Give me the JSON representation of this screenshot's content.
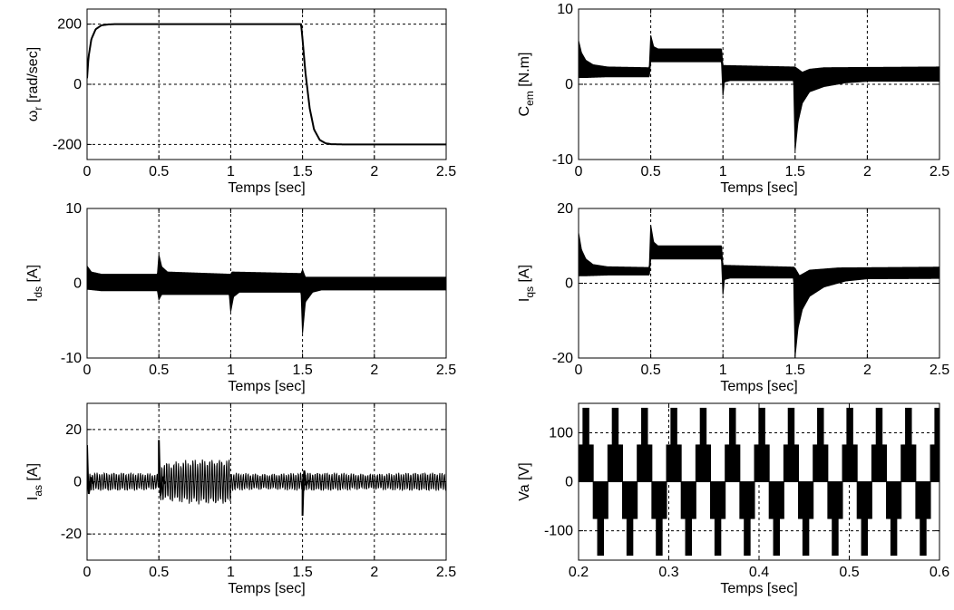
{
  "chart_data": [
    {
      "type": "line",
      "ylabel": "ω_r [rad/sec]",
      "ylabel_main": "ω",
      "ylabel_sub": "r",
      "ylabel_rest": " [rad/sec]",
      "xlabel": "Temps [sec]",
      "xlim": [
        0,
        2.5
      ],
      "ylim": [
        -250,
        250
      ],
      "xticks": [
        0,
        0.5,
        1,
        1.5,
        2,
        2.5
      ],
      "xticklabels": [
        "0",
        "0.5",
        "1",
        "1.5",
        "2",
        "2.5"
      ],
      "yticks": [
        -200,
        0,
        200
      ],
      "yticklabels": [
        "-200",
        "0",
        "200"
      ],
      "grid": true,
      "series": [
        {
          "x": [
            0,
            0.01,
            0.03,
            0.06,
            0.1,
            0.15,
            0.2,
            0.5,
            1.0,
            1.49,
            1.5,
            1.52,
            1.55,
            1.58,
            1.62,
            1.66,
            1.7,
            1.8,
            2.0,
            2.5
          ],
          "values": [
            20,
            90,
            150,
            183,
            196,
            199,
            200,
            200,
            200,
            200,
            150,
            40,
            -80,
            -150,
            -185,
            -196,
            -199,
            -200,
            -200,
            -200
          ]
        }
      ]
    },
    {
      "type": "line",
      "ylabel": "C_em [N.m]",
      "ylabel_main": "C",
      "ylabel_sub": "em",
      "ylabel_rest": " [N.m]",
      "xlabel": "Temps [sec]",
      "xlim": [
        0,
        2.5
      ],
      "ylim": [
        -10,
        10
      ],
      "xticks": [
        0,
        0.5,
        1,
        1.5,
        2,
        2.5
      ],
      "xticklabels": [
        "0",
        "0.5",
        "1",
        "1.5",
        "2",
        "2.5"
      ],
      "yticks": [
        -10,
        0,
        10
      ],
      "yticklabels": [
        "-10",
        "0",
        "10"
      ],
      "grid": true,
      "envelope": {
        "upper": [
          [
            0,
            5.8
          ],
          [
            0.02,
            4.2
          ],
          [
            0.05,
            3.2
          ],
          [
            0.1,
            2.6
          ],
          [
            0.2,
            2.3
          ],
          [
            0.49,
            2.2
          ],
          [
            0.5,
            6.5
          ],
          [
            0.52,
            5.0
          ],
          [
            0.55,
            4.7
          ],
          [
            0.99,
            4.7
          ],
          [
            1.0,
            2.5
          ],
          [
            1.49,
            2.3
          ],
          [
            1.5,
            2.3
          ],
          [
            1.55,
            1.6
          ],
          [
            1.6,
            2.0
          ],
          [
            1.7,
            2.2
          ],
          [
            2.5,
            2.3
          ]
        ],
        "lower": [
          [
            0,
            0.9
          ],
          [
            0.05,
            0.9
          ],
          [
            0.2,
            1.0
          ],
          [
            0.49,
            1.0
          ],
          [
            0.5,
            3.0
          ],
          [
            0.99,
            3.0
          ],
          [
            1.0,
            -1.5
          ],
          [
            1.01,
            0.3
          ],
          [
            1.05,
            0.5
          ],
          [
            1.49,
            0.5
          ],
          [
            1.5,
            -8.8
          ],
          [
            1.52,
            -5.0
          ],
          [
            1.55,
            -2.5
          ],
          [
            1.6,
            -1.0
          ],
          [
            1.7,
            -0.3
          ],
          [
            1.85,
            0.2
          ],
          [
            2.0,
            0.4
          ],
          [
            2.5,
            0.4
          ]
        ]
      }
    },
    {
      "type": "line",
      "ylabel": "I_ds [A]",
      "ylabel_main": "I",
      "ylabel_sub": "ds",
      "ylabel_rest": " [A]",
      "xlabel": "Temps [sec]",
      "xlim": [
        0,
        2.5
      ],
      "ylim": [
        -10,
        10
      ],
      "xticks": [
        0,
        0.5,
        1,
        1.5,
        2,
        2.5
      ],
      "xticklabels": [
        "0",
        "0.5",
        "1",
        "1.5",
        "2",
        "2.5"
      ],
      "yticks": [
        -10,
        0,
        10
      ],
      "yticklabels": [
        "-10",
        "0",
        "10"
      ],
      "grid": true,
      "envelope": {
        "upper": [
          [
            0,
            2.3
          ],
          [
            0.03,
            1.5
          ],
          [
            0.1,
            1.2
          ],
          [
            0.49,
            1.2
          ],
          [
            0.5,
            3.8
          ],
          [
            0.52,
            2.2
          ],
          [
            0.56,
            1.5
          ],
          [
            1.0,
            1.2
          ],
          [
            1.01,
            1.5
          ],
          [
            1.49,
            1.3
          ],
          [
            1.5,
            1.8
          ],
          [
            1.52,
            0.8
          ],
          [
            2.5,
            0.8
          ]
        ],
        "lower": [
          [
            0,
            -0.8
          ],
          [
            0.1,
            -1.0
          ],
          [
            0.49,
            -1.0
          ],
          [
            0.5,
            -2.2
          ],
          [
            0.52,
            -1.5
          ],
          [
            0.99,
            -1.5
          ],
          [
            1.0,
            -3.8
          ],
          [
            1.02,
            -1.8
          ],
          [
            1.06,
            -1.2
          ],
          [
            1.49,
            -1.2
          ],
          [
            1.5,
            -6.7
          ],
          [
            1.52,
            -2.5
          ],
          [
            1.57,
            -1.2
          ],
          [
            1.63,
            -0.9
          ],
          [
            2.5,
            -0.9
          ]
        ]
      }
    },
    {
      "type": "line",
      "ylabel": "I_qs [A]",
      "ylabel_main": "I",
      "ylabel_sub": "qs",
      "ylabel_rest": " [A]",
      "xlabel": "Temps [sec]",
      "xlim": [
        0,
        2.5
      ],
      "ylim": [
        -20,
        20
      ],
      "xticks": [
        0,
        0.5,
        1,
        1.5,
        2,
        2.5
      ],
      "xticklabels": [
        "0",
        "0.5",
        "1",
        "1.5",
        "2",
        "2.5"
      ],
      "yticks": [
        -20,
        0,
        20
      ],
      "yticklabels": [
        "-20",
        "0",
        "20"
      ],
      "grid": true,
      "envelope": {
        "upper": [
          [
            0,
            13.5
          ],
          [
            0.02,
            9.0
          ],
          [
            0.05,
            6.5
          ],
          [
            0.1,
            5.0
          ],
          [
            0.2,
            4.4
          ],
          [
            0.49,
            4.2
          ],
          [
            0.5,
            15.5
          ],
          [
            0.52,
            11.0
          ],
          [
            0.55,
            10.0
          ],
          [
            0.99,
            10.0
          ],
          [
            1.0,
            4.8
          ],
          [
            1.49,
            4.3
          ],
          [
            1.5,
            4.0
          ],
          [
            1.53,
            2.0
          ],
          [
            1.6,
            3.5
          ],
          [
            1.8,
            4.1
          ],
          [
            2.5,
            4.3
          ]
        ],
        "lower": [
          [
            0,
            2.0
          ],
          [
            0.05,
            2.0
          ],
          [
            0.2,
            2.2
          ],
          [
            0.49,
            2.2
          ],
          [
            0.5,
            6.5
          ],
          [
            0.99,
            6.5
          ],
          [
            1.0,
            -3.0
          ],
          [
            1.01,
            1.0
          ],
          [
            1.05,
            1.4
          ],
          [
            1.49,
            1.4
          ],
          [
            1.5,
            -19.5
          ],
          [
            1.52,
            -12.0
          ],
          [
            1.55,
            -7.0
          ],
          [
            1.6,
            -3.5
          ],
          [
            1.7,
            -1.0
          ],
          [
            1.85,
            0.6
          ],
          [
            2.0,
            1.2
          ],
          [
            2.5,
            1.3
          ]
        ]
      }
    },
    {
      "type": "line",
      "ylabel": "I_as [A]",
      "ylabel_main": "I",
      "ylabel_sub": "as",
      "ylabel_rest": " [A]",
      "xlabel": "Temps [sec]",
      "xlim": [
        0,
        2.5
      ],
      "ylim": [
        -30,
        30
      ],
      "xticks": [
        0,
        0.5,
        1,
        1.5,
        2,
        2.5
      ],
      "xticklabels": [
        "0",
        "0.5",
        "1",
        "1.5",
        "2",
        "2.5"
      ],
      "yticks": [
        -20,
        0,
        20
      ],
      "yticklabels": [
        "-20",
        "0",
        "20"
      ],
      "grid": true,
      "oscillation": {
        "cycles_per_second": 60,
        "amplitude_segments": [
          {
            "x": [
              0,
              0.5
            ],
            "amplitude": 4.0
          },
          {
            "x": [
              0.5,
              1.0
            ],
            "amplitude": 10.0
          },
          {
            "x": [
              1.0,
              2.5
            ],
            "amplitude": 4.0
          }
        ],
        "spikes": [
          [
            0.0,
            14
          ],
          [
            0.5,
            16
          ],
          [
            1.5,
            -13
          ]
        ]
      }
    },
    {
      "type": "line",
      "ylabel": "Va [V]",
      "xlabel": "Temps [sec]",
      "xlim": [
        0.2,
        0.6
      ],
      "ylim": [
        -160,
        160
      ],
      "xticks": [
        0.2,
        0.3,
        0.4,
        0.5,
        0.6
      ],
      "xticklabels": [
        "0.2",
        "0.3",
        "0.4",
        "0.5",
        "0.6"
      ],
      "yticks": [
        -100,
        0,
        100
      ],
      "yticklabels": [
        "-100",
        "0",
        "100"
      ],
      "grid": true,
      "pwm": {
        "fundamental_period": 0.0325,
        "levels": [
          150,
          75,
          0,
          -75,
          -150
        ]
      }
    }
  ]
}
